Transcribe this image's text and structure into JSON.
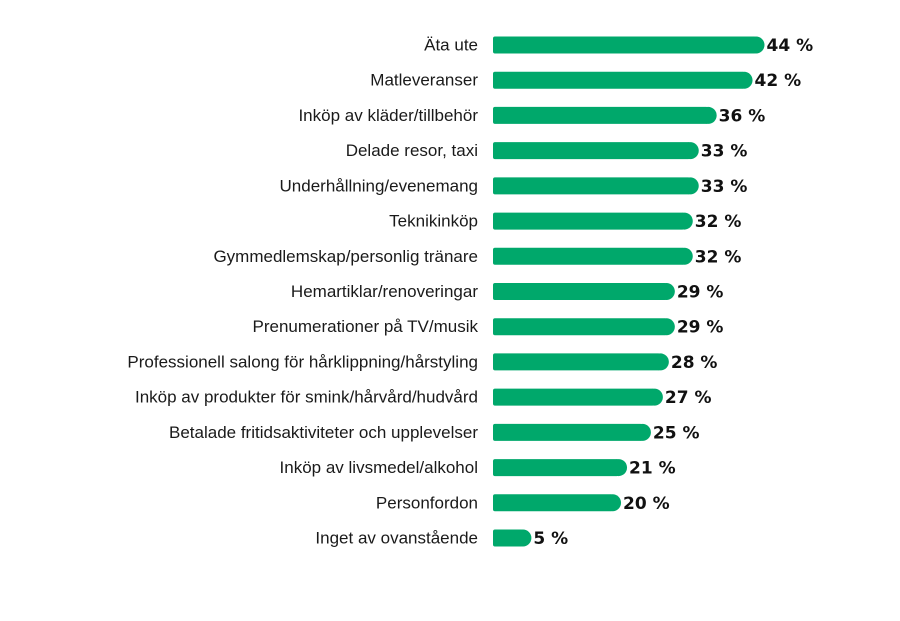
{
  "colors": {
    "bar": "#00A86B",
    "label": "#1a1a1a",
    "value": "#111111",
    "background": "#ffffff"
  },
  "chart_data": {
    "type": "bar",
    "orientation": "horizontal",
    "title": "",
    "xlabel": "",
    "ylabel": "",
    "grid": false,
    "legend": "none",
    "value_suffix": " %",
    "xlim": [
      0,
      44
    ],
    "categories": [
      "Äta ute",
      "Matleveranser",
      "Inköp av kläder/tillbehör",
      "Delade resor, taxi",
      "Underhållning/evenemang",
      "Teknikinköp",
      "Gymmedlemskap/personlig tränare",
      "Hemartiklar/renoveringar",
      "Prenumerationer på TV/musik",
      "Professionell salong för hårklippning/hårstyling",
      "Inköp av produkter för smink/hårvård/hudvård",
      "Betalade fritidsaktiviteter och upplevelser",
      "Inköp av livsmedel/alkohol",
      "Personfordon",
      "Inget av ovanstående"
    ],
    "values": [
      44,
      42,
      36,
      33,
      33,
      32,
      32,
      29,
      29,
      28,
      27,
      25,
      21,
      20,
      5
    ],
    "value_labels": [
      "44 %",
      "42 %",
      "36 %",
      "33 %",
      "33 %",
      "32 %",
      "32 %",
      "29 %",
      "29 %",
      "28 %",
      "27 %",
      "25 %",
      "21 %",
      "20 %",
      "5 %"
    ]
  }
}
